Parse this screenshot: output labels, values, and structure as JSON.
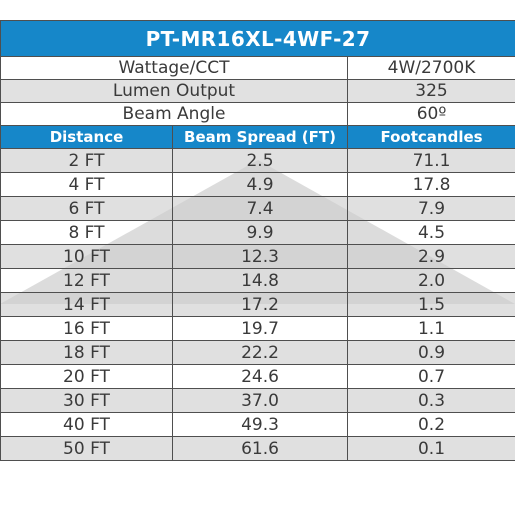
{
  "title": "PT-MR16XL-4WF-27",
  "specs": [
    {
      "label": "Wattage/CCT",
      "value": "4W/2700K"
    },
    {
      "label": "Lumen Output",
      "value": "325"
    },
    {
      "label": "Beam Angle",
      "value": "60º"
    }
  ],
  "columns": [
    "Distance",
    "Beam Spread (FT)",
    "Footcandles"
  ],
  "rows": [
    {
      "distance": "2 FT",
      "beam_spread": "2.5",
      "footcandles": "71.1"
    },
    {
      "distance": "4 FT",
      "beam_spread": "4.9",
      "footcandles": "17.8"
    },
    {
      "distance": "6 FT",
      "beam_spread": "7.4",
      "footcandles": "7.9"
    },
    {
      "distance": "8 FT",
      "beam_spread": "9.9",
      "footcandles": "4.5"
    },
    {
      "distance": "10 FT",
      "beam_spread": "12.3",
      "footcandles": "2.9"
    },
    {
      "distance": "12 FT",
      "beam_spread": "14.8",
      "footcandles": "2.0"
    },
    {
      "distance": "14 FT",
      "beam_spread": "17.2",
      "footcandles": "1.5"
    },
    {
      "distance": "16 FT",
      "beam_spread": "19.7",
      "footcandles": "1.1"
    },
    {
      "distance": "18 FT",
      "beam_spread": "22.2",
      "footcandles": "0.9"
    },
    {
      "distance": "20 FT",
      "beam_spread": "24.6",
      "footcandles": "0.7"
    },
    {
      "distance": "30 FT",
      "beam_spread": "37.0",
      "footcandles": "0.3"
    },
    {
      "distance": "40 FT",
      "beam_spread": "49.3",
      "footcandles": "0.2"
    },
    {
      "distance": "50 FT",
      "beam_spread": "61.6",
      "footcandles": "0.1"
    }
  ],
  "colors": {
    "header_blue": "#1687c9",
    "shaded_row": "#e1e1e1",
    "grid_line": "#4f4f4f",
    "cone_fill": "#d6d6d6"
  }
}
